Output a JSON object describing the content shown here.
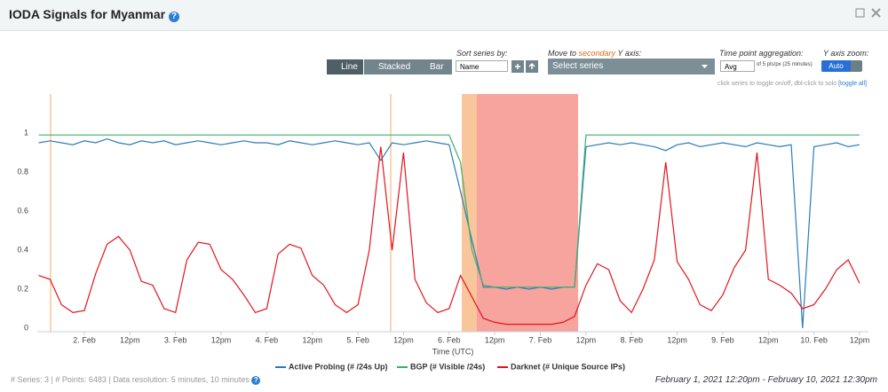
{
  "header": {
    "title": "IODA Signals for Myanmar",
    "help": "?"
  },
  "controls": {
    "chart_types": [
      "Line",
      "Stacked",
      "Bar"
    ],
    "sort_label": "Sort series by:",
    "sort_value": "Name",
    "move_label": [
      "Move to ",
      "secondary",
      " Y axis:"
    ],
    "move_value": "Select series",
    "aggregation_label": "Time point aggregation:",
    "aggregation_value": "Avg",
    "aggregation_note": "of 5 pts/px (25 minutes)",
    "zoom_label": "Y axis zoom:",
    "zoom_value": "Auto",
    "hint": "click series to toggle on/off, dbl-click to solo ",
    "hint_link": "[toggle all]"
  },
  "chart_data": {
    "type": "line",
    "x_label": "Time (UTC)",
    "categories": [
      null,
      null,
      null,
      null,
      "2. Feb",
      null,
      null,
      null,
      "12pm",
      null,
      null,
      null,
      "3. Feb",
      null,
      null,
      null,
      "12pm",
      null,
      null,
      null,
      "4. Feb",
      null,
      null,
      null,
      "12pm",
      null,
      null,
      null,
      "5. Feb",
      null,
      null,
      null,
      "12pm",
      null,
      null,
      null,
      "6. Feb",
      null,
      null,
      null,
      "12pm",
      null,
      null,
      null,
      "7. Feb",
      null,
      null,
      null,
      "12pm",
      null,
      null,
      null,
      "8. Feb",
      null,
      null,
      null,
      "12pm",
      null,
      null,
      null,
      "9. Feb",
      null,
      null,
      null,
      "12pm",
      null,
      null,
      null,
      "10. Feb",
      null,
      null,
      null,
      "12pm"
    ],
    "ylim": [
      0,
      1.2
    ],
    "yticks": [
      0,
      0.2,
      0.4,
      0.6,
      0.8,
      1
    ],
    "grid": false,
    "series": [
      {
        "name": "Active Probing (# /24s Up)",
        "color": "#2b7bba",
        "values": [
          0.95,
          0.96,
          0.95,
          0.94,
          0.96,
          0.95,
          0.97,
          0.95,
          0.94,
          0.96,
          0.95,
          0.96,
          0.94,
          0.95,
          0.96,
          0.95,
          0.94,
          0.95,
          0.96,
          0.95,
          0.95,
          0.94,
          0.96,
          0.95,
          0.94,
          0.95,
          0.96,
          0.95,
          0.94,
          0.95,
          0.86,
          0.95,
          0.94,
          0.95,
          0.96,
          0.95,
          0.94,
          0.7,
          0.45,
          0.21,
          0.21,
          0.2,
          0.21,
          0.2,
          0.21,
          0.2,
          0.21,
          0.21,
          0.93,
          0.94,
          0.95,
          0.94,
          0.95,
          0.94,
          0.93,
          0.91,
          0.94,
          0.95,
          0.93,
          0.94,
          0.95,
          0.94,
          0.93,
          0.95,
          0.94,
          0.93,
          0.94,
          0,
          0.93,
          0.94,
          0.95,
          0.93,
          0.94
        ]
      },
      {
        "name": "BGP (# Visible /24s)",
        "color": "#3cb06b",
        "values": [
          0.99,
          0.99,
          0.99,
          0.99,
          0.99,
          0.99,
          0.99,
          0.99,
          0.99,
          0.99,
          0.99,
          0.99,
          0.99,
          0.99,
          0.99,
          0.99,
          0.99,
          0.99,
          0.99,
          0.99,
          0.99,
          0.99,
          0.99,
          0.99,
          0.99,
          0.99,
          0.99,
          0.99,
          0.99,
          0.99,
          0.99,
          0.99,
          0.99,
          0.99,
          0.99,
          0.99,
          0.99,
          0.85,
          0.4,
          0.22,
          0.21,
          0.21,
          0.21,
          0.21,
          0.21,
          0.21,
          0.21,
          0.21,
          0.99,
          0.99,
          0.99,
          0.99,
          0.99,
          0.99,
          0.99,
          0.99,
          0.99,
          0.99,
          0.99,
          0.99,
          0.99,
          0.99,
          0.99,
          0.99,
          0.99,
          0.99,
          0.99,
          0.99,
          0.99,
          0.99,
          0.99,
          0.99,
          0.99
        ]
      },
      {
        "name": "Darknet (# Unique Source IPs)",
        "color": "#e3141c",
        "values": [
          0.27,
          0.25,
          0.12,
          0.08,
          0.09,
          0.28,
          0.43,
          0.47,
          0.4,
          0.24,
          0.22,
          0.1,
          0.08,
          0.35,
          0.44,
          0.43,
          0.3,
          0.25,
          0.17,
          0.08,
          0.1,
          0.38,
          0.43,
          0.41,
          0.27,
          0.22,
          0.12,
          0.08,
          0.12,
          0.4,
          0.93,
          0.4,
          0.9,
          0.25,
          0.13,
          0.08,
          0.1,
          0.27,
          0.16,
          0.05,
          0.03,
          0.02,
          0.02,
          0.02,
          0.02,
          0.02,
          0.03,
          0.06,
          0.22,
          0.33,
          0.3,
          0.14,
          0.08,
          0.2,
          0.35,
          0.85,
          0.34,
          0.25,
          0.12,
          0.09,
          0.17,
          0.31,
          0.4,
          0.9,
          0.25,
          0.22,
          0.18,
          0.1,
          0.12,
          0.2,
          0.3,
          0.35,
          0.23
        ]
      }
    ]
  },
  "footer": {
    "stats": "# Series: 3 | # Points: 6483 | Data resolution: 5 minutes, 10 minutes",
    "help": "?",
    "range": "February 1, 2021 12:20pm - February 10, 2021 12:30pm"
  }
}
